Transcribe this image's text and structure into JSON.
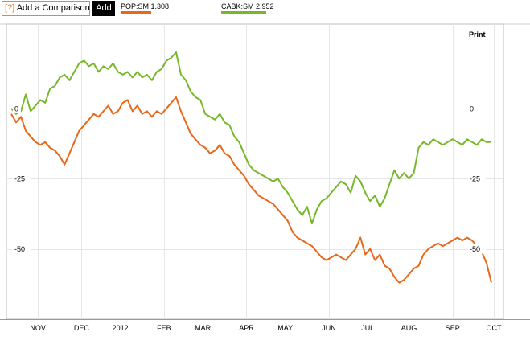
{
  "toolbar": {
    "compare_prefix": "[?]",
    "compare_label": "Add a Comparison",
    "add_label": "Add"
  },
  "legend": [
    {
      "label": "POP:SM 1.308",
      "color": "#e8681a"
    },
    {
      "label": "CABK:SM 2.952",
      "color": "#77b82a"
    }
  ],
  "print_label": "Print",
  "chart_data": {
    "type": "line",
    "xlim": [
      0,
      100
    ],
    "ylim": [
      -75,
      30
    ],
    "x_ticks": [
      {
        "label": "NOV",
        "x": 5.5
      },
      {
        "label": "DEC",
        "x": 14.5
      },
      {
        "label": "2012",
        "x": 22.5
      },
      {
        "label": "FEB",
        "x": 31.5
      },
      {
        "label": "MAR",
        "x": 39.5
      },
      {
        "label": "APR",
        "x": 48.5
      },
      {
        "label": "MAY",
        "x": 56.5
      },
      {
        "label": "JUN",
        "x": 65.5
      },
      {
        "label": "JUL",
        "x": 73.5
      },
      {
        "label": "AUG",
        "x": 82
      },
      {
        "label": "SEP",
        "x": 91
      },
      {
        "label": "OCT",
        "x": 99.5
      }
    ],
    "y_ticks": [
      {
        "label": "0",
        "value": 0
      },
      {
        "label": "-25",
        "value": -25
      },
      {
        "label": "-50",
        "value": -50
      }
    ],
    "series": [
      {
        "name": "CABK:SM 2.952",
        "color": "#77b82a",
        "points": [
          [
            0,
            0
          ],
          [
            1,
            -2
          ],
          [
            2,
            -1
          ],
          [
            3,
            5
          ],
          [
            4,
            -1
          ],
          [
            5,
            1
          ],
          [
            6,
            3
          ],
          [
            7,
            2
          ],
          [
            8,
            7
          ],
          [
            9,
            8
          ],
          [
            10,
            11
          ],
          [
            11,
            12
          ],
          [
            12,
            10
          ],
          [
            13,
            13
          ],
          [
            14,
            16
          ],
          [
            15,
            17
          ],
          [
            16,
            15
          ],
          [
            17,
            16
          ],
          [
            18,
            13
          ],
          [
            19,
            15
          ],
          [
            20,
            14
          ],
          [
            21,
            16
          ],
          [
            22,
            13
          ],
          [
            23,
            12
          ],
          [
            24,
            13
          ],
          [
            25,
            11
          ],
          [
            26,
            13
          ],
          [
            27,
            11
          ],
          [
            28,
            12
          ],
          [
            29,
            10
          ],
          [
            30,
            13
          ],
          [
            31,
            14
          ],
          [
            32,
            17
          ],
          [
            33,
            18
          ],
          [
            34,
            20
          ],
          [
            35,
            12
          ],
          [
            36,
            10
          ],
          [
            37,
            6
          ],
          [
            38,
            4
          ],
          [
            39,
            3
          ],
          [
            40,
            -2
          ],
          [
            41,
            -3
          ],
          [
            42,
            -4
          ],
          [
            43,
            -2
          ],
          [
            44,
            -5
          ],
          [
            45,
            -6
          ],
          [
            46,
            -10
          ],
          [
            47,
            -12
          ],
          [
            48,
            -16
          ],
          [
            49,
            -20
          ],
          [
            50,
            -22
          ],
          [
            51,
            -23
          ],
          [
            52,
            -24
          ],
          [
            53,
            -25
          ],
          [
            54,
            -26
          ],
          [
            55,
            -25
          ],
          [
            56,
            -28
          ],
          [
            57,
            -30
          ],
          [
            58,
            -33
          ],
          [
            59,
            -36
          ],
          [
            60,
            -38
          ],
          [
            61,
            -35
          ],
          [
            62,
            -41
          ],
          [
            63,
            -36
          ],
          [
            64,
            -33
          ],
          [
            65,
            -32
          ],
          [
            66,
            -30
          ],
          [
            67,
            -28
          ],
          [
            68,
            -26
          ],
          [
            69,
            -27
          ],
          [
            70,
            -30
          ],
          [
            71,
            -24
          ],
          [
            72,
            -26
          ],
          [
            73,
            -30
          ],
          [
            74,
            -33
          ],
          [
            75,
            -31
          ],
          [
            76,
            -35
          ],
          [
            77,
            -32
          ],
          [
            78,
            -27
          ],
          [
            79,
            -22
          ],
          [
            80,
            -25
          ],
          [
            81,
            -23
          ],
          [
            82,
            -25
          ],
          [
            83,
            -23
          ],
          [
            84,
            -14
          ],
          [
            85,
            -12
          ],
          [
            86,
            -13
          ],
          [
            87,
            -11
          ],
          [
            88,
            -12
          ],
          [
            89,
            -13
          ],
          [
            90,
            -12
          ],
          [
            91,
            -11
          ],
          [
            92,
            -12
          ],
          [
            93,
            -13
          ],
          [
            94,
            -11
          ],
          [
            95,
            -12
          ],
          [
            96,
            -13
          ],
          [
            97,
            -11
          ],
          [
            98,
            -12
          ],
          [
            99,
            -12
          ]
        ]
      },
      {
        "name": "POP:SM 1.308",
        "color": "#e8681a",
        "points": [
          [
            0,
            -2
          ],
          [
            1,
            -5
          ],
          [
            2,
            -3
          ],
          [
            3,
            -8
          ],
          [
            4,
            -10
          ],
          [
            5,
            -12
          ],
          [
            6,
            -13
          ],
          [
            7,
            -12
          ],
          [
            8,
            -14
          ],
          [
            9,
            -15
          ],
          [
            10,
            -17
          ],
          [
            11,
            -20
          ],
          [
            12,
            -16
          ],
          [
            13,
            -12
          ],
          [
            14,
            -8
          ],
          [
            15,
            -6
          ],
          [
            16,
            -4
          ],
          [
            17,
            -2
          ],
          [
            18,
            -3
          ],
          [
            19,
            -1
          ],
          [
            20,
            1
          ],
          [
            21,
            -2
          ],
          [
            22,
            -1
          ],
          [
            23,
            2
          ],
          [
            24,
            3
          ],
          [
            25,
            -1
          ],
          [
            26,
            1
          ],
          [
            27,
            -2
          ],
          [
            28,
            -1
          ],
          [
            29,
            -3
          ],
          [
            30,
            -1
          ],
          [
            31,
            -2
          ],
          [
            32,
            0
          ],
          [
            33,
            2
          ],
          [
            34,
            4
          ],
          [
            35,
            -1
          ],
          [
            36,
            -5
          ],
          [
            37,
            -9
          ],
          [
            38,
            -11
          ],
          [
            39,
            -13
          ],
          [
            40,
            -14
          ],
          [
            41,
            -16
          ],
          [
            42,
            -15
          ],
          [
            43,
            -13
          ],
          [
            44,
            -16
          ],
          [
            45,
            -17
          ],
          [
            46,
            -20
          ],
          [
            47,
            -22
          ],
          [
            48,
            -24
          ],
          [
            49,
            -27
          ],
          [
            50,
            -29
          ],
          [
            51,
            -31
          ],
          [
            52,
            -32
          ],
          [
            53,
            -33
          ],
          [
            54,
            -34
          ],
          [
            55,
            -36
          ],
          [
            56,
            -38
          ],
          [
            57,
            -40
          ],
          [
            58,
            -44
          ],
          [
            59,
            -46
          ],
          [
            60,
            -47
          ],
          [
            61,
            -48
          ],
          [
            62,
            -49
          ],
          [
            63,
            -51
          ],
          [
            64,
            -53
          ],
          [
            65,
            -54
          ],
          [
            66,
            -53
          ],
          [
            67,
            -52
          ],
          [
            68,
            -53
          ],
          [
            69,
            -54
          ],
          [
            70,
            -52
          ],
          [
            71,
            -50
          ],
          [
            72,
            -46
          ],
          [
            73,
            -52
          ],
          [
            74,
            -50
          ],
          [
            75,
            -54
          ],
          [
            76,
            -52
          ],
          [
            77,
            -56
          ],
          [
            78,
            -57
          ],
          [
            79,
            -60
          ],
          [
            80,
            -62
          ],
          [
            81,
            -61
          ],
          [
            82,
            -59
          ],
          [
            83,
            -57
          ],
          [
            84,
            -56
          ],
          [
            85,
            -52
          ],
          [
            86,
            -50
          ],
          [
            87,
            -49
          ],
          [
            88,
            -48
          ],
          [
            89,
            -49
          ],
          [
            90,
            -48
          ],
          [
            91,
            -47
          ],
          [
            92,
            -46
          ],
          [
            93,
            -47
          ],
          [
            94,
            -46
          ],
          [
            95,
            -47
          ],
          [
            96,
            -49
          ],
          [
            97,
            -51
          ],
          [
            98,
            -55
          ],
          [
            99,
            -62
          ]
        ]
      }
    ]
  }
}
